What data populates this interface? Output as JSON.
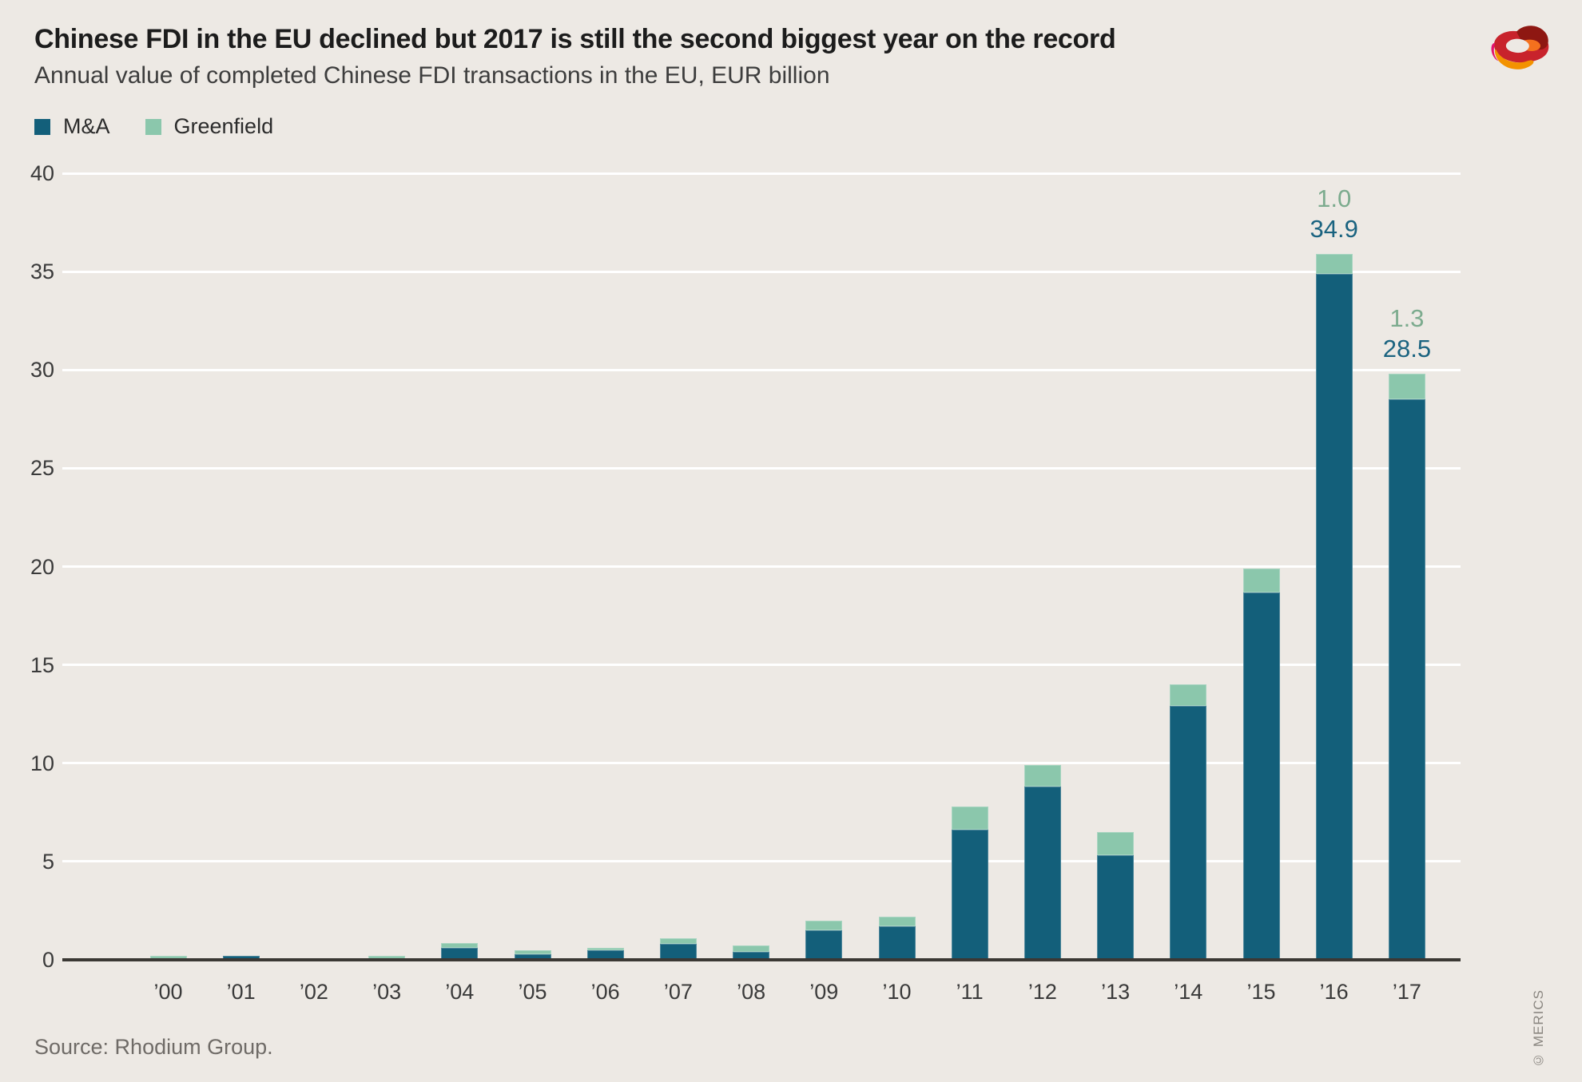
{
  "header": {
    "title": "Chinese FDI in the EU declined but 2017 is still the second biggest year on the record",
    "subtitle": "Annual value of completed Chinese FDI transactions in the EU, EUR billion"
  },
  "legend": {
    "items": [
      {
        "label": "M&A",
        "color": "#135F7A"
      },
      {
        "label": "Greenfield",
        "color": "#8BC7AC"
      }
    ]
  },
  "footer": {
    "source": "Source: Rhodium Group.",
    "credit": "© MERICS"
  },
  "colors": {
    "background": "#EDE9E4",
    "grid": "#FFFFFF",
    "axis": "#3B3834",
    "tick_text": "#3A3A3A",
    "ma": "#135F7A",
    "greenfield": "#8BC7AC",
    "ma_label": "#1A6380",
    "greenfield_label": "#7CAB8E"
  },
  "chart_data": {
    "type": "bar",
    "stacked": true,
    "title": "Chinese FDI in the EU declined but 2017 is still the second biggest year on the record",
    "subtitle": "Annual value of completed Chinese FDI transactions in the EU, EUR billion",
    "xlabel": "",
    "ylabel": "EUR billion",
    "categories": [
      "’00",
      "’01",
      "’02",
      "’03",
      "’04",
      "’05",
      "’06",
      "’07",
      "’08",
      "’09",
      "’10",
      "’11",
      "’12",
      "’13",
      "’14",
      "’15",
      "’16",
      "’17"
    ],
    "series": [
      {
        "name": "M&A",
        "color": "#135F7A",
        "values": [
          0.0,
          0.2,
          0.1,
          0.0,
          0.6,
          0.3,
          0.5,
          0.8,
          0.4,
          1.5,
          1.7,
          6.6,
          8.8,
          5.3,
          12.9,
          18.7,
          34.9,
          28.5
        ]
      },
      {
        "name": "Greenfield",
        "color": "#8BC7AC",
        "values": [
          0.2,
          0.0,
          0.0,
          0.2,
          0.25,
          0.2,
          0.1,
          0.3,
          0.35,
          0.5,
          0.5,
          1.2,
          1.1,
          1.2,
          1.1,
          1.2,
          1.0,
          1.3
        ]
      }
    ],
    "ylim": [
      0,
      40
    ],
    "yticks": [
      0,
      5,
      10,
      15,
      20,
      25,
      30,
      35,
      40
    ],
    "grid": true,
    "legend_position": "top-left",
    "annotations": [
      {
        "category_index": 16,
        "lines": [
          {
            "text": "1.0",
            "color_role": "greenfield_label"
          },
          {
            "text": "34.9",
            "color_role": "ma_label"
          }
        ]
      },
      {
        "category_index": 17,
        "lines": [
          {
            "text": "1.3",
            "color_role": "greenfield_label"
          },
          {
            "text": "28.5",
            "color_role": "ma_label"
          }
        ]
      }
    ]
  }
}
